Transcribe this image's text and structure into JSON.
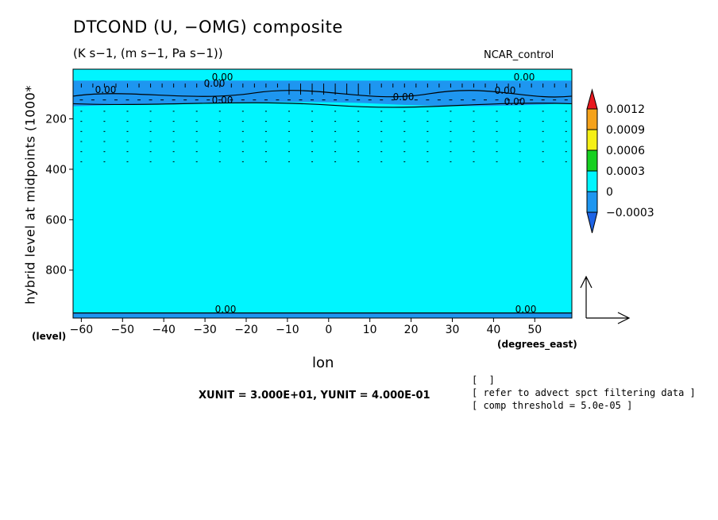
{
  "chart_data": {
    "type": "heatmap",
    "title": "DTCOND (U, −OMG) composite",
    "subtitle": "(K s−1, (m s−1, Pa s−1))",
    "dataset": "NCAR_control",
    "xlabel": "lon",
    "ylabel": "hybrid level at midpoints (1000*",
    "y_unit_tag": "(level)",
    "x_unit_tag": "(degrees_east)",
    "x_ticks": [
      -60,
      -50,
      -40,
      -30,
      -20,
      -10,
      0,
      10,
      20,
      30,
      40,
      50
    ],
    "y_ticks": [
      200,
      400,
      600,
      800
    ],
    "xlim": [
      -62,
      59
    ],
    "ylim": [
      990,
      3
    ],
    "colorbar": {
      "levels": [
        "0.0012",
        "0.0009",
        "0.0006",
        "0.0003",
        "0",
        "−0.0003"
      ],
      "colors": [
        "#e8191f",
        "#f5a21b",
        "#f5f016",
        "#16d020",
        "#00f5ff",
        "#1e96f0",
        "#1e64e6"
      ]
    },
    "contour_labels": [
      "0.00",
      "0.00",
      "0.00",
      "0.00",
      "0.00",
      "0.00",
      "0.00",
      "0.00",
      "0.00",
      "0.00",
      "0.00"
    ],
    "fields": {
      "background_value": 0,
      "negative_band_upper_hpa": [
        48,
        150
      ],
      "negative_band_bottom_hpa": [
        970,
        990
      ],
      "negative_value": -0.0003
    },
    "reference_vector": {
      "xunit_label": "XUNIT = 3.000E+01, YUNIT = 4.000E-01"
    },
    "notes": [
      "[  ]",
      "[ refer to advect spct filtering data ]",
      "[ comp threshold = 5.0e-05 ]"
    ],
    "grid": false
  }
}
